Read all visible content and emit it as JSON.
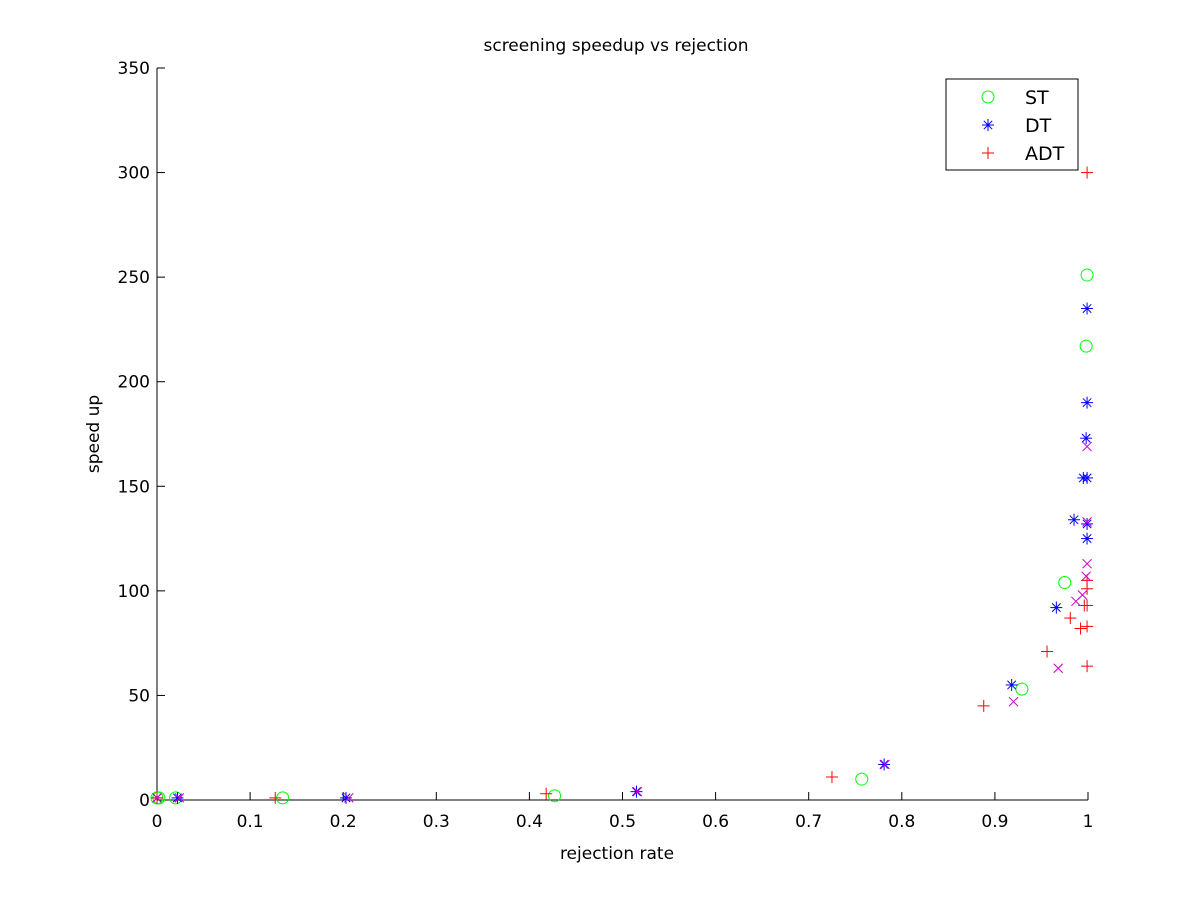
{
  "chart_data": {
    "type": "scatter",
    "title": "screening speedup vs rejection",
    "xlabel": "rejection rate",
    "ylabel": "speed up",
    "xlim": [
      0,
      1
    ],
    "ylim": [
      0,
      350
    ],
    "xticks": [
      0,
      0.1,
      0.2,
      0.3,
      0.4,
      0.5,
      0.6,
      0.7,
      0.8,
      0.9,
      1
    ],
    "xtick_labels": [
      "0",
      "0.1",
      "0.2",
      "0.3",
      "0.4",
      "0.5",
      "0.6",
      "0.7",
      "0.8",
      "0.9",
      "1"
    ],
    "yticks": [
      0,
      50,
      100,
      150,
      200,
      250,
      300,
      350
    ],
    "ytick_labels": [
      "0",
      "50",
      "100",
      "150",
      "200",
      "250",
      "300",
      "350"
    ],
    "grid": false,
    "legend_position": "top-right",
    "series": [
      {
        "name": "ST",
        "marker": "circle",
        "color": "#00ff00",
        "in_legend": true,
        "points": [
          [
            0.0,
            1
          ],
          [
            0.002,
            1
          ],
          [
            0.02,
            1
          ],
          [
            0.135,
            1
          ],
          [
            0.427,
            2
          ],
          [
            0.757,
            10
          ],
          [
            0.929,
            53
          ],
          [
            0.975,
            104
          ],
          [
            0.998,
            217
          ],
          [
            0.999,
            251
          ]
        ]
      },
      {
        "name": "DT",
        "marker": "asterisk",
        "color": "#0000ff",
        "in_legend": true,
        "points": [
          [
            0.0,
            1
          ],
          [
            0.022,
            1
          ],
          [
            0.203,
            1
          ],
          [
            0.515,
            4
          ],
          [
            0.781,
            17
          ],
          [
            0.918,
            55
          ],
          [
            0.966,
            92
          ],
          [
            0.985,
            134
          ],
          [
            0.995,
            154
          ],
          [
            0.998,
            173
          ],
          [
            0.999,
            154
          ],
          [
            0.999,
            125
          ],
          [
            0.999,
            132
          ],
          [
            0.999,
            190
          ],
          [
            0.999,
            235
          ]
        ]
      },
      {
        "name": "ADT",
        "marker": "plus",
        "color": "#ff0000",
        "in_legend": true,
        "points": [
          [
            0.0,
            1
          ],
          [
            0.127,
            1
          ],
          [
            0.418,
            3
          ],
          [
            0.725,
            11
          ],
          [
            0.888,
            45
          ],
          [
            0.956,
            71
          ],
          [
            0.981,
            87
          ],
          [
            0.992,
            82
          ],
          [
            0.996,
            93
          ],
          [
            0.999,
            83
          ],
          [
            0.999,
            64
          ],
          [
            0.999,
            93
          ],
          [
            0.999,
            101
          ],
          [
            0.999,
            105
          ],
          [
            0.999,
            300
          ]
        ]
      },
      {
        "name": "",
        "marker": "x",
        "color": "#cc00cc",
        "in_legend": false,
        "points": [
          [
            0.0,
            1
          ],
          [
            0.024,
            1
          ],
          [
            0.206,
            1
          ],
          [
            0.516,
            4
          ],
          [
            0.782,
            17
          ],
          [
            0.92,
            47
          ],
          [
            0.968,
            63
          ],
          [
            0.987,
            95
          ],
          [
            0.994,
            98
          ],
          [
            0.998,
            107
          ],
          [
            0.999,
            113
          ],
          [
            0.999,
            133
          ],
          [
            0.999,
            169
          ]
        ]
      }
    ]
  }
}
